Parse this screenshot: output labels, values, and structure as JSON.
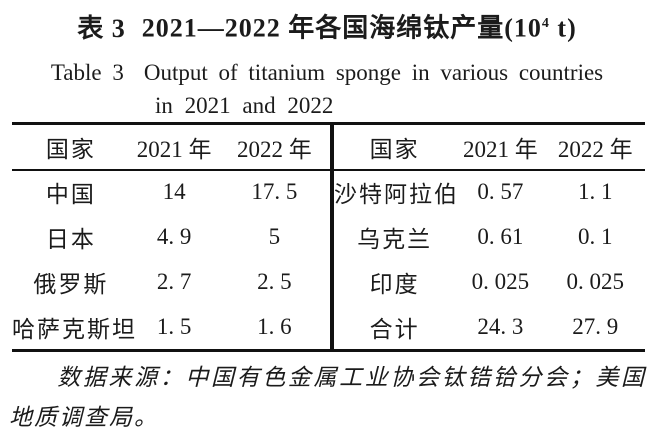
{
  "title_zh": {
    "label": "表 3",
    "main": "2021—2022 年各国海绵钛产量(10",
    "sup": "4",
    "tail": " t)"
  },
  "title_en": {
    "label": "Table 3",
    "line1": "Output of titanium sponge in various countries",
    "line2": "in 2021 and 2022"
  },
  "table": {
    "left": {
      "headers": [
        "国家",
        "2021 年",
        "2022 年"
      ],
      "rows": [
        {
          "country": "中国",
          "y2021": "14",
          "y2022": "17. 5"
        },
        {
          "country": "日本",
          "y2021": "4. 9",
          "y2022": "5"
        },
        {
          "country": "俄罗斯",
          "y2021": "2. 7",
          "y2022": "2. 5"
        },
        {
          "country": "哈萨克斯坦",
          "y2021": "1. 5",
          "y2022": "1. 6"
        }
      ]
    },
    "right": {
      "headers": [
        "国家",
        "2021 年",
        "2022 年"
      ],
      "rows": [
        {
          "country": "沙特阿拉伯",
          "y2021": "0. 57",
          "y2022": "1. 1"
        },
        {
          "country": "乌克兰",
          "y2021": "0. 61",
          "y2022": "0. 1"
        },
        {
          "country": "印度",
          "y2021": "0. 025",
          "y2022": "0. 025"
        },
        {
          "country": "合计",
          "y2021": "24. 3",
          "y2022": "27. 9"
        }
      ]
    }
  },
  "source_note": "数据来源：中国有色金属工业协会钛锆铪分会；美国地质调查局。",
  "colors": {
    "text": "#1b1b1b",
    "rule": "#111111",
    "background": "#ffffff"
  }
}
